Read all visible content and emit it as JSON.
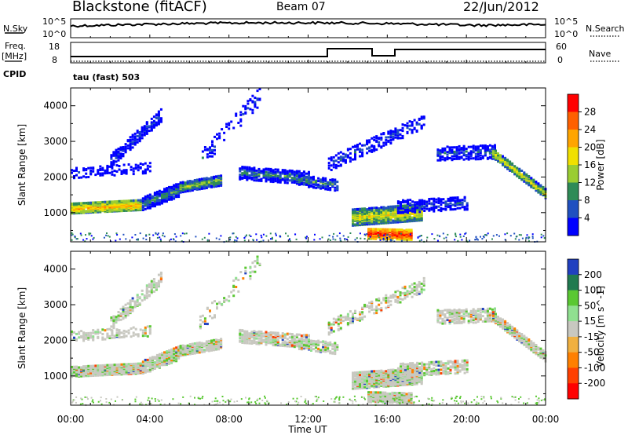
{
  "header": {
    "station": "Blackstone (fitACF)",
    "beam": "Beam 07",
    "date": "22/Jun/2012"
  },
  "top_panels": {
    "nsky_label": "N.Sky",
    "nsearch_label": "N.Search",
    "noise_ticks": [
      "10^5",
      "10^0"
    ],
    "noise_ticks_right": [
      "10^5",
      "10^0"
    ],
    "freq_label": "Freq.",
    "freq_unit": "[MHz]",
    "freq_ticks": [
      "18",
      "8"
    ],
    "nave_label": "Nave",
    "nave_ticks": [
      "60",
      "0"
    ],
    "cpid_label": "CPID",
    "cpid_value": "tau (fast) 503"
  },
  "chart_data": [
    {
      "type": "heatmap",
      "name": "power",
      "ylabel": "Slant Range [km]",
      "xlabel": "",
      "ylim": [
        180,
        4500
      ],
      "xlim": [
        0,
        24
      ],
      "y_ticks": [
        1000,
        2000,
        3000,
        4000
      ],
      "colorbar": {
        "label": "Power [dB]",
        "ticks": [
          "28",
          "24",
          "20",
          "16",
          "12",
          "8",
          "4"
        ],
        "colors": [
          "#ff0000",
          "#ff6000",
          "#ffa500",
          "#f0e000",
          "#9acd32",
          "#2e8b57",
          "#2050c0",
          "#0000ff"
        ]
      },
      "features": [
        {
          "t0": 0,
          "t1": 3.5,
          "r0": 1000,
          "r1": 1350,
          "level": "high"
        },
        {
          "t0": 3.5,
          "t1": 7.6,
          "r0": 1400,
          "r1": 2050,
          "level": "mid"
        },
        {
          "t0": 14.3,
          "t1": 17.6,
          "r0": 250,
          "r1": 1300,
          "level": "high"
        },
        {
          "t0": 21.3,
          "t1": 24,
          "r0": 1500,
          "r1": 2800,
          "level": "mid"
        }
      ]
    },
    {
      "type": "heatmap",
      "name": "velocity",
      "ylabel": "Slant Range [km]",
      "xlabel": "Time UT",
      "ylim": [
        180,
        4500
      ],
      "xlim": [
        0,
        24
      ],
      "y_ticks": [
        1000,
        2000,
        3000,
        4000
      ],
      "x_ticks": [
        "00:00",
        "04:00",
        "08:00",
        "12:00",
        "16:00",
        "20:00",
        "00:00"
      ],
      "colorbar": {
        "label": "Velocity [m s^-1]",
        "ticks": [
          "200",
          "100",
          "50",
          "15",
          "-15",
          "-50",
          "-100",
          "-200"
        ],
        "colors": [
          "#2040c0",
          "#207a50",
          "#5ac832",
          "#90e090",
          "#c8c8c0",
          "#f0b040",
          "#ff8000",
          "#ff4000",
          "#ff0000"
        ]
      }
    }
  ]
}
